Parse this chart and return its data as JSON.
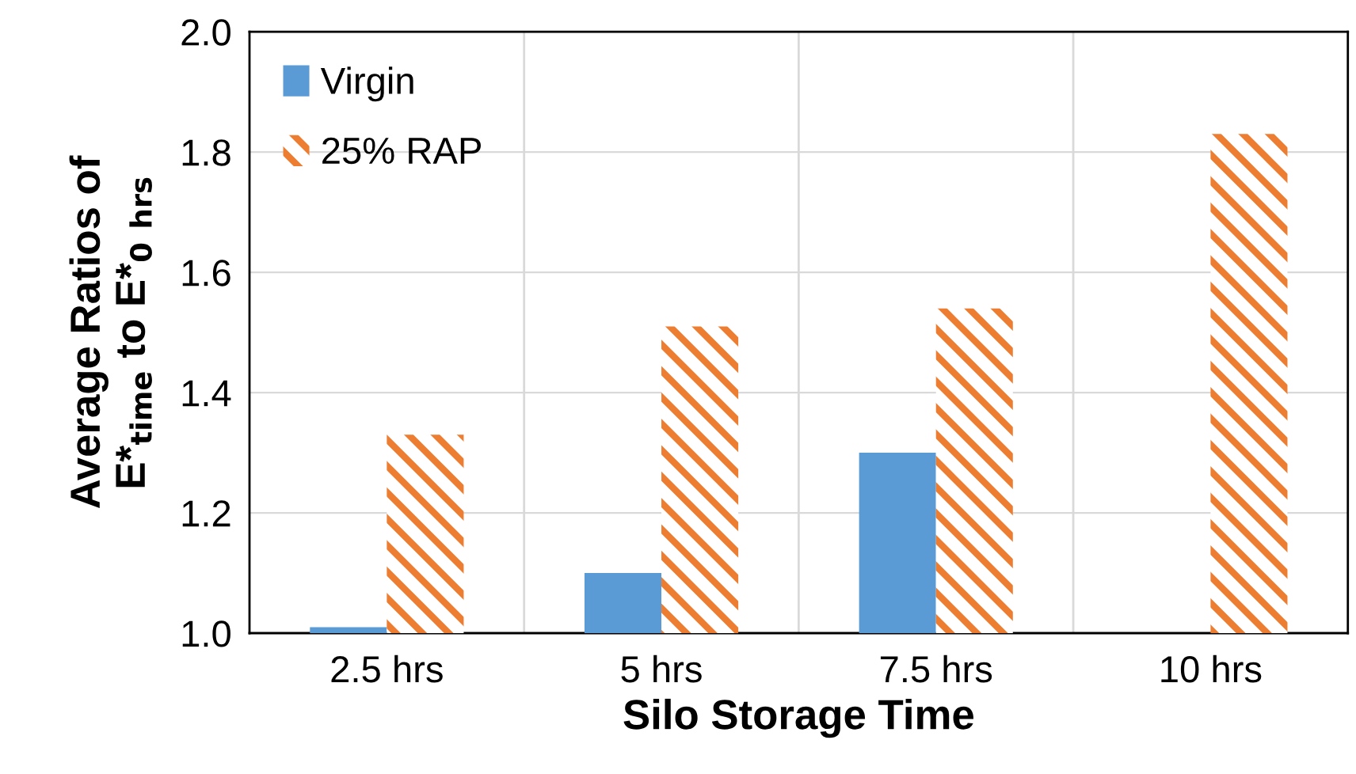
{
  "chart_data": {
    "type": "bar",
    "xlabel": "Silo Storage Time",
    "ylabel": "Average Ratios of\nE*$_{time}$ to E*$_{0}$ $_{hrs}$",
    "categories": [
      "2.5 hrs",
      "5 hrs",
      "7.5 hrs",
      "10 hrs"
    ],
    "series": [
      {
        "name": "Virgin",
        "color": "#5b9bd5",
        "values": [
          1.01,
          1.1,
          1.3,
          null
        ]
      },
      {
        "name": "25% RAP",
        "color": "#ed7d31",
        "values": [
          1.33,
          1.51,
          1.54,
          1.83
        ]
      }
    ],
    "ylim": [
      1.0,
      2.0
    ],
    "yticks": [
      {
        "value": 1.0,
        "label": "1.0"
      },
      {
        "value": 1.2,
        "label": "1.2"
      },
      {
        "value": 1.4,
        "label": "1.4"
      },
      {
        "value": 1.6,
        "label": "1.6"
      },
      {
        "value": 1.8,
        "label": "1.8"
      },
      {
        "value": 2.0,
        "label": "2.0"
      }
    ],
    "grid": true,
    "legend": "top left"
  }
}
